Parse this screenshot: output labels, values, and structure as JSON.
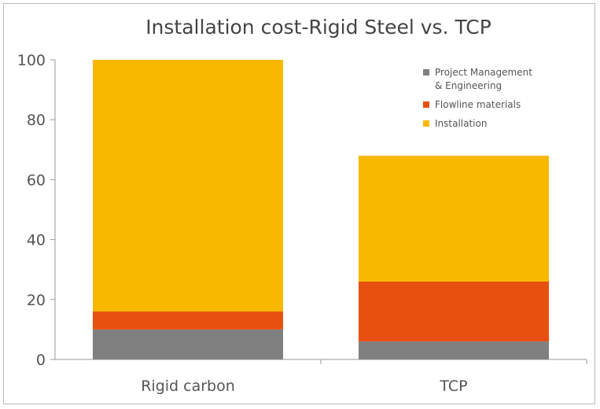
{
  "chart_data": {
    "type": "bar",
    "stacked": true,
    "title": "Installation cost-Rigid Steel vs. TCP",
    "xlabel": "",
    "ylabel": "",
    "ylim": [
      0,
      100
    ],
    "yticks": [
      "0",
      "20",
      "40",
      "60",
      "80",
      "100"
    ],
    "categories": [
      "Rigid carbon",
      "TCP"
    ],
    "series": [
      {
        "name": "Project Management & Engineering",
        "legend_lines": [
          "Project Management",
          "& Engineering"
        ],
        "color": "#808080",
        "values": [
          10,
          6
        ]
      },
      {
        "name": "Flowline materials",
        "legend_lines": [
          "Flowline materials"
        ],
        "color": "#e8500f",
        "values": [
          6,
          20
        ]
      },
      {
        "name": "Installation",
        "legend_lines": [
          "Installation"
        ],
        "color": "#f9b800",
        "values": [
          84,
          42
        ]
      }
    ],
    "grid": false,
    "legend_position": "top-right"
  }
}
